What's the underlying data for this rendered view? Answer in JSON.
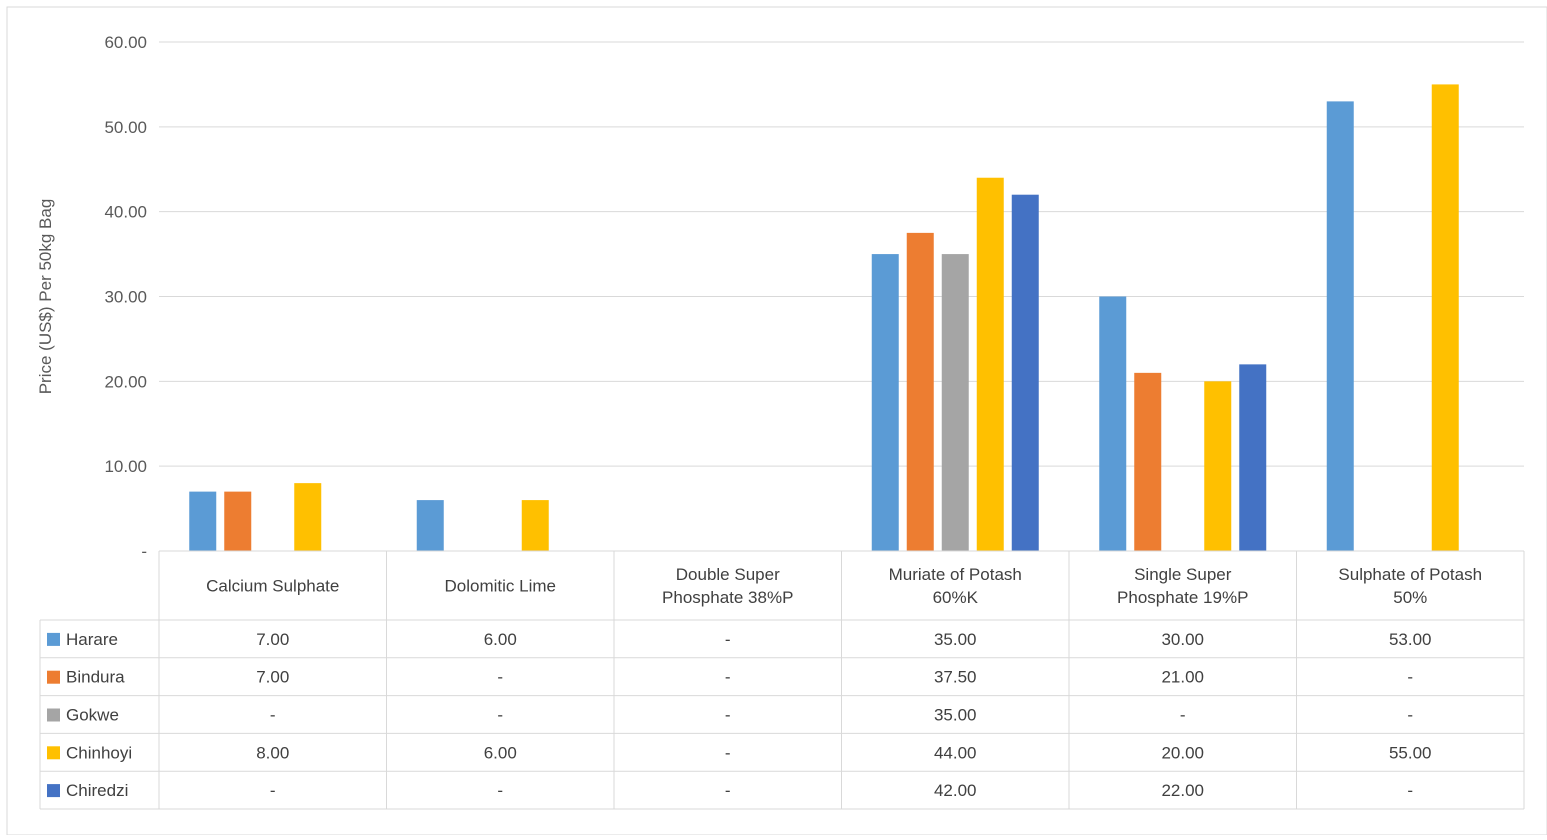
{
  "caption": "",
  "chart_data": {
    "type": "bar",
    "ylabel": "Price (US$) Per 50kg Bag",
    "xlabel": "",
    "ylim": [
      0,
      60
    ],
    "yticks": [
      0,
      10,
      20,
      30,
      40,
      50,
      60
    ],
    "ytick_labels": [
      "-",
      "10.00",
      "20.00",
      "30.00",
      "40.00",
      "50.00",
      "60.00"
    ],
    "grid": true,
    "legend_position": "table-left",
    "categories": [
      [
        "Calcium Sulphate"
      ],
      [
        "Dolomitic Lime"
      ],
      [
        "Double Super",
        "Phosphate 38%P"
      ],
      [
        "Muriate of Potash",
        "60%K"
      ],
      [
        "Single Super",
        "Phosphate 19%P"
      ],
      [
        "Sulphate of Potash",
        "50%"
      ]
    ],
    "series": [
      {
        "name": "Harare",
        "color": "#5B9BD5",
        "values": [
          7,
          6,
          null,
          35,
          30,
          53
        ],
        "labels": [
          "7.00",
          "6.00",
          "-",
          "35.00",
          "30.00",
          "53.00"
        ]
      },
      {
        "name": "Bindura",
        "color": "#ED7D31",
        "values": [
          7,
          null,
          null,
          37.5,
          21,
          null
        ],
        "labels": [
          "7.00",
          "-",
          "-",
          "37.50",
          "21.00",
          "-"
        ]
      },
      {
        "name": "Gokwe",
        "color": "#A5A5A5",
        "values": [
          null,
          null,
          null,
          35,
          null,
          null
        ],
        "labels": [
          "-",
          "-",
          "-",
          "35.00",
          "-",
          "-"
        ]
      },
      {
        "name": "Chinhoyi",
        "color": "#FFC000",
        "values": [
          8,
          6,
          null,
          44,
          20,
          55
        ],
        "labels": [
          "8.00",
          "6.00",
          "-",
          "44.00",
          "20.00",
          "55.00"
        ]
      },
      {
        "name": "Chiredzi",
        "color": "#4472C4",
        "values": [
          null,
          null,
          null,
          42,
          22,
          null
        ],
        "labels": [
          "-",
          "-",
          "-",
          "42.00",
          "22.00",
          "-"
        ]
      }
    ]
  }
}
